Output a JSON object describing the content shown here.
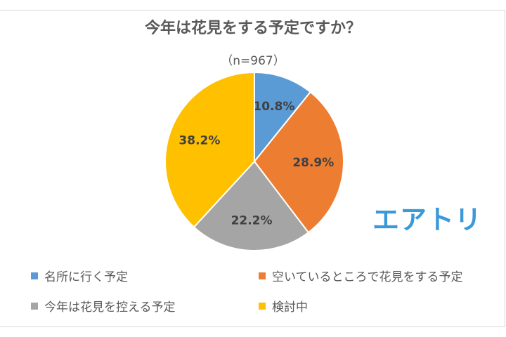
{
  "chart_data": {
    "type": "pie",
    "title": "今年は花見をする予定ですか？",
    "subtitle": "（n=967）",
    "slices": [
      {
        "label": "名所に行く予定",
        "value": 10.8,
        "value_label": "10.8%",
        "color": "#5b9bd5"
      },
      {
        "label": "空いているところで花見をする予定",
        "value": 28.9,
        "value_label": "28.9%",
        "color": "#ed7d31"
      },
      {
        "label": "今年は花見を控える予定",
        "value": 22.2,
        "value_label": "22.2%",
        "color": "#a5a5a5"
      },
      {
        "label": "検討中",
        "value": 38.2,
        "value_label": "38.2%",
        "color": "#ffc000"
      }
    ],
    "start": "12 o'clock",
    "direction": "clockwise",
    "legend_position": "bottom"
  },
  "logo_text": "エアトリ",
  "brand_color": "#3a9ad9"
}
